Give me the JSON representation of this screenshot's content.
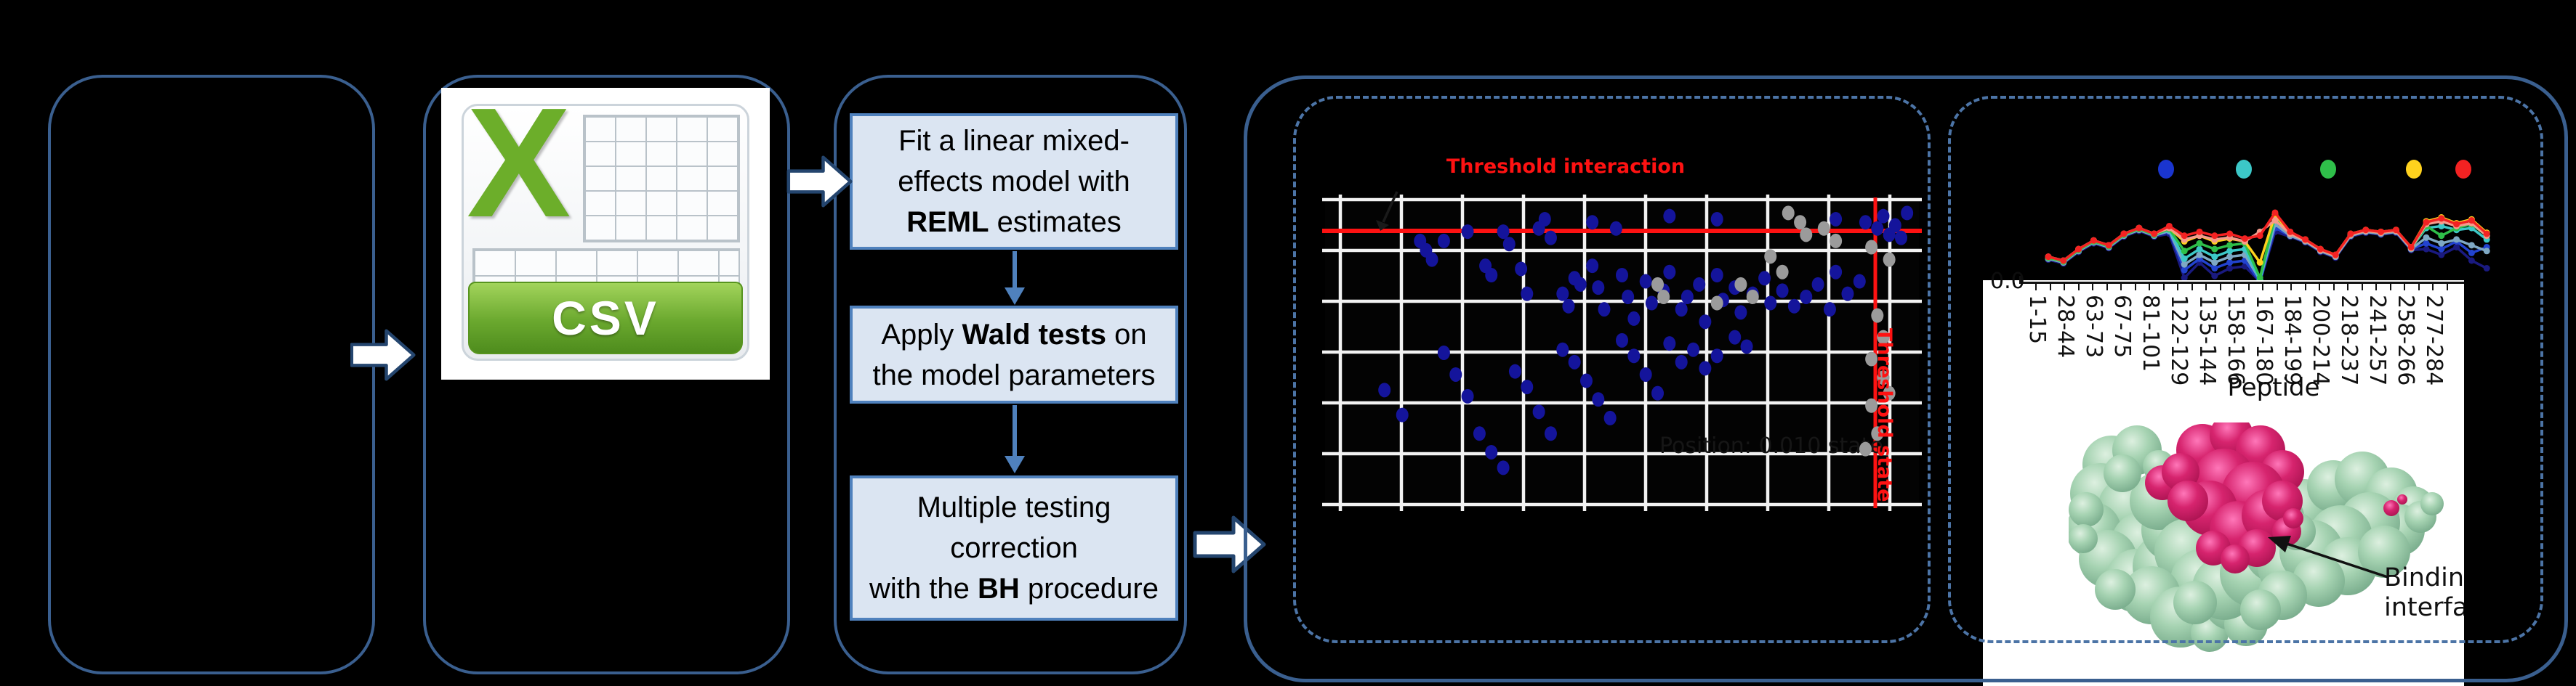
{
  "style": {
    "box_border": "#3a5f8f",
    "dash_border": "#4c74a6",
    "step_fill": "#dbe5f2",
    "step_border": "#4f81bd",
    "arrow_fill": "#ffffff",
    "arrow_stroke": "#24456e",
    "threshold_color": "#fe1212",
    "grid_color": "#f2f2f2"
  },
  "workflow": {
    "csv_label": "CSV",
    "flow_steps": [
      {
        "lines": [
          [
            {
              "t": "Fit a linear mixed-"
            }
          ],
          [
            {
              "t": "effects model with"
            }
          ],
          [
            {
              "t": "REML",
              "b": 1
            },
            {
              "t": " estimates"
            }
          ]
        ]
      },
      {
        "lines": [
          [
            {
              "t": "Apply "
            },
            {
              "t": "Wald tests",
              "b": 1
            },
            {
              "t": " on"
            }
          ],
          [
            {
              "t": "the model parameters"
            }
          ]
        ]
      },
      {
        "lines": [
          [
            {
              "t": "Multiple testing"
            }
          ],
          [
            {
              "t": "correction"
            }
          ],
          [
            {
              "t": "with the "
            },
            {
              "t": "BH",
              "b": 1
            },
            {
              "t": " procedure"
            }
          ]
        ]
      }
    ]
  },
  "scatter": {
    "type": "scatter",
    "title": "Threshold interaction",
    "vline_label": "Threshold state",
    "hidden_caption": "Position: 0.010 state",
    "grid": {
      "v_count": 10,
      "v_start": 21,
      "v_step": 84,
      "h_count": 7,
      "h_start": 3,
      "h_step": 70
    },
    "red_hline_y": 46,
    "red_vline_x": 757,
    "blue_color": "#14149b",
    "gray_color": "#9b9b9b",
    "blue_points": [
      [
        37,
        7
      ],
      [
        45,
        8
      ],
      [
        58,
        6
      ],
      [
        66,
        7
      ],
      [
        86,
        7
      ],
      [
        91,
        8
      ],
      [
        93,
        10
      ],
      [
        94,
        6
      ],
      [
        95,
        12
      ],
      [
        96,
        9
      ],
      [
        97,
        13
      ],
      [
        98,
        5
      ],
      [
        16,
        14
      ],
      [
        17,
        17
      ],
      [
        18,
        20
      ],
      [
        20,
        14
      ],
      [
        24,
        11
      ],
      [
        27,
        22
      ],
      [
        28,
        25
      ],
      [
        30,
        11
      ],
      [
        31,
        15
      ],
      [
        33,
        23
      ],
      [
        34,
        31
      ],
      [
        36,
        10
      ],
      [
        38,
        13
      ],
      [
        40,
        31
      ],
      [
        41,
        35
      ],
      [
        42,
        26
      ],
      [
        43,
        28
      ],
      [
        45,
        22
      ],
      [
        46,
        29
      ],
      [
        47,
        36
      ],
      [
        49,
        10
      ],
      [
        50,
        25
      ],
      [
        51,
        32
      ],
      [
        52,
        39
      ],
      [
        54,
        27
      ],
      [
        55,
        34
      ],
      [
        57,
        30
      ],
      [
        58,
        24
      ],
      [
        60,
        36
      ],
      [
        61,
        32
      ],
      [
        63,
        28
      ],
      [
        64,
        40
      ],
      [
        66,
        25
      ],
      [
        67,
        33
      ],
      [
        69,
        29
      ],
      [
        70,
        37
      ],
      [
        72,
        31
      ],
      [
        74,
        26
      ],
      [
        75,
        34
      ],
      [
        77,
        30
      ],
      [
        79,
        35
      ],
      [
        81,
        32
      ],
      [
        83,
        28
      ],
      [
        85,
        36
      ],
      [
        86,
        24
      ],
      [
        88,
        31
      ],
      [
        90,
        27
      ],
      [
        10,
        62
      ],
      [
        13,
        70
      ],
      [
        20,
        50
      ],
      [
        22,
        57
      ],
      [
        24,
        64
      ],
      [
        26,
        76
      ],
      [
        28,
        82
      ],
      [
        30,
        87
      ],
      [
        32,
        56
      ],
      [
        34,
        61
      ],
      [
        36,
        69
      ],
      [
        38,
        76
      ],
      [
        40,
        49
      ],
      [
        42,
        53
      ],
      [
        44,
        59
      ],
      [
        46,
        65
      ],
      [
        48,
        71
      ],
      [
        50,
        46
      ],
      [
        52,
        51
      ],
      [
        54,
        57
      ],
      [
        56,
        63
      ],
      [
        58,
        47
      ],
      [
        60,
        53
      ],
      [
        62,
        49
      ],
      [
        64,
        55
      ],
      [
        66,
        51
      ],
      [
        69,
        45
      ],
      [
        71,
        48
      ]
    ],
    "gray_points": [
      [
        78,
        5
      ],
      [
        80,
        8
      ],
      [
        81,
        12
      ],
      [
        84,
        10
      ],
      [
        86,
        14
      ],
      [
        75,
        19
      ],
      [
        77,
        24
      ],
      [
        70,
        28
      ],
      [
        72,
        32
      ],
      [
        56,
        28
      ],
      [
        57,
        32
      ],
      [
        66,
        34
      ],
      [
        92,
        16
      ],
      [
        95,
        20
      ],
      [
        93,
        38
      ],
      [
        94,
        45
      ],
      [
        92,
        52
      ],
      [
        94,
        58
      ],
      [
        95,
        63
      ],
      [
        92,
        67
      ],
      [
        93,
        76
      ],
      [
        91,
        81
      ]
    ]
  },
  "line_chart": {
    "type": "line",
    "y_axis_label": "0.0",
    "x_axis_title": "Peptide",
    "peptide_ticks": [
      "1-15",
      "28-44",
      "63-73",
      "67-75",
      "81-101",
      "122-129",
      "135-144",
      "158-166",
      "167-180",
      "184-199",
      "200-214",
      "218-237",
      "241-257",
      "258-266",
      "277-284"
    ],
    "legend_dot_colors": [
      "#1a35cf",
      "#3cc8c8",
      "#2fbf4a",
      "#ffd21e",
      "#f32222"
    ],
    "series": [
      {
        "name": "navy",
        "color": "#1a1a80",
        "values": [
          77,
          81,
          69,
          60,
          65,
          53,
          47,
          53,
          50,
          96,
          80,
          94,
          86,
          84,
          100,
          48,
          53,
          59,
          69,
          75,
          53,
          49,
          51,
          49,
          67,
          66,
          72,
          64,
          78,
          86
        ]
      },
      {
        "name": "blue",
        "color": "#2243cf",
        "values": [
          76,
          80,
          68,
          59,
          64,
          52,
          46,
          52,
          48,
          88,
          76,
          86,
          80,
          78,
          100,
          44,
          52,
          58,
          68,
          74,
          52,
          48,
          50,
          48,
          66,
          60,
          66,
          58,
          70,
          64
        ]
      },
      {
        "name": "steel",
        "color": "#7ea8c4",
        "values": [
          76,
          80,
          68,
          59,
          64,
          52,
          46,
          52,
          47,
          82,
          72,
          80,
          74,
          72,
          98,
          40,
          52,
          58,
          68,
          74,
          52,
          48,
          50,
          48,
          66,
          54,
          60,
          56,
          62,
          68
        ]
      },
      {
        "name": "teal",
        "color": "#3cc8c8",
        "values": [
          75,
          79,
          67,
          58,
          63,
          51,
          45,
          51,
          46,
          76,
          66,
          74,
          68,
          66,
          98,
          34,
          50,
          57,
          67,
          73,
          51,
          47,
          49,
          47,
          65,
          44,
          42,
          46,
          44,
          56
        ]
      },
      {
        "name": "green",
        "color": "#2fbf4a",
        "values": [
          75,
          79,
          67,
          58,
          63,
          51,
          45,
          51,
          45,
          68,
          60,
          66,
          62,
          60,
          96,
          32,
          49,
          57,
          67,
          73,
          51,
          47,
          49,
          47,
          65,
          42,
          52,
          44,
          40,
          52
        ]
      },
      {
        "name": "yellow",
        "color": "#ffd21e",
        "values": [
          74,
          78,
          66,
          57,
          62,
          50,
          44,
          50,
          44,
          58,
          52,
          58,
          55,
          58,
          80,
          30,
          49,
          56,
          66,
          72,
          50,
          46,
          48,
          46,
          64,
          37,
          33,
          39,
          35,
          49
        ]
      },
      {
        "name": "salmon",
        "color": "#f59b8c",
        "values": [
          74,
          78,
          66,
          57,
          62,
          50,
          44,
          50,
          44,
          56,
          52,
          56,
          54,
          58,
          48,
          36,
          50,
          57,
          67,
          73,
          51,
          47,
          49,
          47,
          65,
          40,
          37,
          42,
          39,
          52
        ]
      },
      {
        "name": "red",
        "color": "#f32222",
        "values": [
          74,
          78,
          66,
          57,
          62,
          50,
          44,
          50,
          42,
          52,
          48,
          52,
          50,
          55,
          52,
          28,
          48,
          56,
          66,
          72,
          50,
          46,
          48,
          46,
          64,
          38,
          34,
          40,
          36,
          50
        ]
      }
    ]
  },
  "structure_panel": {
    "annotation_line1": "Binding",
    "annotation_line2": "interface",
    "green_color": "#a6d3b2",
    "green_dark": "#74a888",
    "green_light": "#ddf0e0",
    "pink_color": "#d6246e",
    "pink_dark": "#a8124f",
    "pink_light": "#ff77b9"
  }
}
